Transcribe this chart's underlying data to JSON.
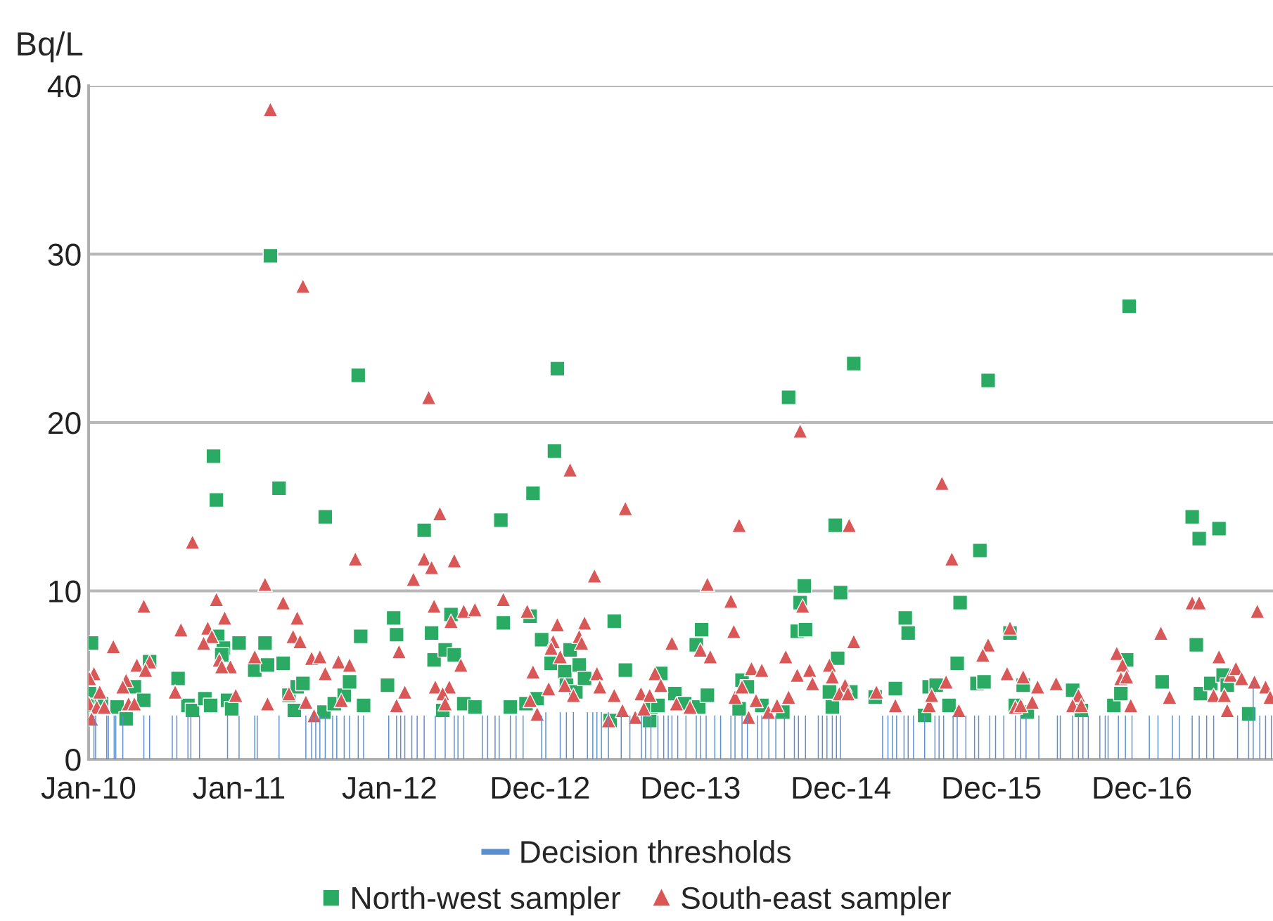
{
  "chart_data": {
    "type": "scatter",
    "ylabel": "Bq/L",
    "xlim": [
      "2010-01-01",
      "2017-11-13"
    ],
    "xticks": [
      {
        "value": "2010-01-01",
        "label": "Jan-10"
      },
      {
        "value": "2011-01-01",
        "label": "Jan-11"
      },
      {
        "value": "2012-01-01",
        "label": "Jan-12"
      },
      {
        "value": "2012-12-31",
        "label": "Dec-12"
      },
      {
        "value": "2013-12-31",
        "label": "Dec-13"
      },
      {
        "value": "2014-12-31",
        "label": "Dec-14"
      },
      {
        "value": "2015-12-31",
        "label": "Dec-15"
      },
      {
        "value": "2016-12-30",
        "label": "Dec-16"
      }
    ],
    "ylim": [
      0,
      40
    ],
    "yticks": [
      0,
      10,
      20,
      30,
      40
    ],
    "grid": "y",
    "legend": "bottom",
    "series": [
      {
        "name": "Decision thresholds",
        "type": "bar",
        "color": "#5b8fd0",
        "x": [
          "2010-01-14",
          "2010-01-18",
          "2010-02-14",
          "2010-02-18",
          "2010-03-04",
          "2010-03-08",
          "2010-03-25",
          "2010-05-15",
          "2010-05-29",
          "2010-07-23",
          "2010-08-03",
          "2010-08-30",
          "2010-09-06",
          "2010-09-27",
          "2010-12-04",
          "2011-01-01",
          "2011-02-08",
          "2011-02-14",
          "2011-04-08",
          "2011-06-12",
          "2011-06-26",
          "2011-07-06",
          "2011-07-16",
          "2011-07-29",
          "2011-08-16",
          "2011-08-26",
          "2011-09-13",
          "2011-09-26",
          "2011-10-17",
          "2011-10-30",
          "2011-12-30",
          "2012-01-18",
          "2012-01-28",
          "2012-02-07",
          "2012-02-24",
          "2012-03-08",
          "2012-03-25",
          "2012-04-21",
          "2012-05-15",
          "2012-06-06",
          "2012-06-15",
          "2012-06-29",
          "2012-08-13",
          "2012-08-26",
          "2012-09-13",
          "2012-09-23",
          "2012-10-20",
          "2012-11-03",
          "2012-11-20",
          "2013-01-04",
          "2013-01-14",
          "2013-02-18",
          "2013-03-05",
          "2013-03-22",
          "2013-04-25",
          "2013-05-08",
          "2013-05-18",
          "2013-05-29",
          "2013-06-15",
          "2013-07-16",
          "2013-08-06",
          "2013-09-03",
          "2013-09-13",
          "2013-09-26",
          "2013-10-13",
          "2013-10-27",
          "2013-11-07",
          "2013-11-16",
          "2013-11-30",
          "2013-12-20",
          "2014-01-14",
          "2014-01-24",
          "2014-02-07",
          "2014-02-28",
          "2014-03-14",
          "2014-04-08",
          "2014-04-18",
          "2014-05-05",
          "2014-05-18",
          "2014-06-12",
          "2014-06-22",
          "2014-07-09",
          "2014-07-26",
          "2014-08-16",
          "2014-09-09",
          "2014-09-19",
          "2014-10-06",
          "2014-11-06",
          "2014-11-16",
          "2014-11-27",
          "2014-12-10",
          "2014-12-20",
          "2014-12-30",
          "2015-04-11",
          "2015-04-24",
          "2015-05-05",
          "2015-05-15",
          "2015-06-02",
          "2015-06-12",
          "2015-06-25",
          "2015-07-22",
          "2015-08-16",
          "2015-08-26",
          "2015-09-06",
          "2015-09-29",
          "2015-10-09",
          "2015-10-30",
          "2015-11-20",
          "2015-11-30",
          "2015-12-27",
          "2016-01-10",
          "2016-01-30",
          "2016-02-27",
          "2016-03-11",
          "2016-03-24",
          "2016-04-24",
          "2016-06-08",
          "2016-06-15",
          "2016-07-15",
          "2016-07-29",
          "2016-08-09",
          "2016-08-22",
          "2016-09-19",
          "2016-10-02",
          "2016-10-09",
          "2016-11-03",
          "2016-11-20",
          "2016-12-06",
          "2017-01-17",
          "2017-02-07",
          "2017-03-14",
          "2017-03-31",
          "2017-05-01",
          "2017-05-18",
          "2017-06-05",
          "2017-06-22",
          "2017-08-19",
          "2017-09-15",
          "2017-09-26",
          "2017-10-12",
          "2017-10-26",
          "2017-11-09"
        ],
        "values": [
          2.6,
          2.6,
          2.6,
          2.6,
          2.6,
          2.6,
          2.6,
          2.6,
          2.6,
          2.6,
          2.6,
          2.6,
          2.6,
          2.6,
          2.6,
          2.6,
          2.6,
          2.6,
          2.6,
          2.6,
          2.6,
          2.6,
          2.6,
          2.6,
          2.6,
          2.6,
          2.6,
          2.6,
          2.6,
          2.6,
          2.6,
          2.6,
          2.6,
          2.6,
          2.6,
          2.6,
          2.6,
          2.6,
          2.6,
          2.6,
          2.6,
          2.6,
          2.6,
          2.6,
          2.6,
          2.6,
          2.6,
          2.6,
          2.6,
          2.6,
          2.8,
          2.8,
          2.8,
          2.8,
          2.8,
          2.8,
          2.8,
          2.8,
          2.8,
          2.8,
          2.6,
          2.6,
          2.6,
          2.6,
          2.6,
          2.6,
          2.6,
          2.6,
          2.6,
          2.6,
          2.6,
          2.6,
          2.6,
          2.6,
          2.6,
          2.6,
          2.6,
          2.6,
          2.6,
          2.6,
          2.6,
          2.6,
          2.6,
          2.6,
          2.6,
          2.6,
          2.6,
          2.6,
          2.6,
          2.6,
          2.6,
          2.6,
          2.6,
          2.6,
          2.6,
          2.6,
          2.6,
          2.6,
          2.6,
          2.6,
          2.6,
          2.6,
          2.6,
          2.6,
          2.6,
          2.6,
          2.6,
          2.6,
          2.6,
          2.6,
          2.6,
          2.6,
          2.6,
          2.6,
          2.6,
          2.6,
          2.6,
          2.6,
          2.6,
          2.6,
          2.6,
          2.6,
          2.6,
          2.6,
          2.6,
          2.6,
          2.6,
          2.6,
          2.6,
          2.6,
          2.6,
          2.6,
          2.6,
          2.6,
          2.6,
          2.6,
          2.6,
          2.6,
          4.5,
          2.6,
          2.6,
          2.6
        ]
      },
      {
        "name": "North-west sampler",
        "marker": "square",
        "color": "#2aaa62",
        "x": [
          "2010-01-08",
          "2010-01-03",
          "2010-01-02",
          "2010-02-01",
          "2010-03-11",
          "2010-04-02",
          "2010-04-22",
          "2010-05-15",
          "2010-05-29",
          "2010-08-06",
          "2010-08-30",
          "2010-09-10",
          "2010-10-10",
          "2010-10-24",
          "2010-10-31",
          "2010-11-07",
          "2010-11-10",
          "2010-11-24",
          "2010-11-20",
          "2010-12-04",
          "2010-12-14",
          "2011-01-01",
          "2011-02-08",
          "2011-03-05",
          "2011-03-11",
          "2011-03-18",
          "2011-04-08",
          "2011-04-18",
          "2011-05-02",
          "2011-05-15",
          "2011-05-22",
          "2011-06-05",
          "2011-07-26",
          "2011-07-29",
          "2011-08-20",
          "2011-09-13",
          "2011-09-26",
          "2011-10-17",
          "2011-10-23",
          "2011-10-30",
          "2011-12-27",
          "2012-01-11",
          "2012-01-18",
          "2012-03-25",
          "2012-04-12",
          "2012-04-18",
          "2012-05-15",
          "2012-05-29",
          "2012-06-06",
          "2012-05-09",
          "2012-06-29",
          "2012-07-26",
          "2012-10-20",
          "2012-09-27",
          "2012-10-03",
          "2012-12-07",
          "2012-11-27",
          "2012-12-24",
          "2012-12-14",
          "2013-02-04",
          "2013-02-11",
          "2013-01-04",
          "2013-01-27",
          "2013-03-01",
          "2013-03-14",
          "2013-03-05",
          "2013-03-28",
          "2013-04-05",
          "2013-04-18",
          "2013-06-29",
          "2013-07-26",
          "2013-06-19",
          "2013-09-23",
          "2013-09-26",
          "2013-10-13",
          "2013-10-20",
          "2013-11-23",
          "2013-12-17",
          "2014-01-20",
          "2014-01-14",
          "2014-01-27",
          "2014-02-10",
          "2014-04-28",
          "2014-05-05",
          "2014-05-18",
          "2014-06-22",
          "2014-08-12",
          "2014-08-26",
          "2014-09-16",
          "2014-10-06",
          "2014-09-23",
          "2014-10-03",
          "2014-12-03",
          "2014-12-10",
          "2014-12-23",
          "2014-12-30",
          "2014-12-17",
          "2015-01-24",
          "2015-01-31",
          "2015-03-24",
          "2015-05-12",
          "2015-07-22",
          "2015-08-02",
          "2015-08-19",
          "2015-09-19",
          "2015-10-09",
          "2015-10-16",
          "2015-06-05",
          "2015-06-12",
          "2015-12-03",
          "2015-11-26",
          "2015-12-13",
          "2015-12-23",
          "2016-02-14",
          "2016-02-27",
          "2016-03-17",
          "2016-03-27",
          "2016-07-15",
          "2016-08-05",
          "2016-10-23",
          "2016-11-09",
          "2016-11-23",
          "2016-11-29",
          "2017-02-17",
          "2017-05-01",
          "2017-05-18",
          "2017-05-11",
          "2017-05-21",
          "2017-07-05",
          "2017-06-15",
          "2017-07-15",
          "2017-07-25",
          "2017-09-15"
        ],
        "values": [
          6.9,
          3.9,
          3.2,
          3.3,
          3.1,
          2.4,
          4.3,
          3.5,
          5.8,
          4.8,
          3.2,
          2.9,
          3.6,
          3.2,
          18.0,
          15.4,
          7.3,
          6.6,
          6.2,
          3.5,
          3.0,
          6.9,
          5.3,
          6.9,
          5.6,
          29.9,
          16.1,
          5.7,
          3.8,
          2.9,
          4.3,
          4.5,
          2.8,
          14.4,
          3.3,
          3.8,
          4.6,
          22.8,
          7.3,
          3.2,
          4.4,
          8.4,
          7.4,
          13.6,
          7.5,
          5.9,
          6.5,
          8.6,
          6.2,
          2.9,
          3.3,
          3.1,
          3.1,
          14.2,
          8.1,
          8.5,
          3.3,
          3.6,
          15.8,
          18.3,
          23.2,
          7.1,
          5.7,
          5.2,
          6.5,
          4.4,
          4.0,
          5.6,
          4.8,
          8.2,
          5.3,
          2.3,
          2.3,
          3.1,
          3.2,
          5.1,
          3.9,
          3.3,
          3.1,
          6.8,
          7.7,
          3.8,
          3.0,
          4.7,
          4.3,
          3.2,
          2.8,
          21.5,
          7.6,
          7.7,
          9.3,
          10.3,
          4.0,
          3.1,
          6.0,
          9.9,
          13.9,
          4.0,
          23.5,
          3.7,
          4.2,
          2.6,
          4.3,
          4.4,
          3.2,
          5.7,
          9.3,
          8.4,
          7.5,
          12.4,
          4.5,
          4.6,
          22.5,
          7.5,
          3.2,
          4.4,
          2.8,
          4.1,
          2.9,
          3.2,
          3.9,
          5.9,
          26.9,
          4.6,
          14.4,
          13.1,
          6.8,
          3.9,
          13.7,
          4.5,
          5.0,
          4.4,
          2.7
        ]
      },
      {
        "name": "South-east sampler",
        "marker": "triangle",
        "color": "#d95757",
        "x": [
          "2011-03-18",
          "2011-06-05",
          "2012-04-05",
          "2010-09-10",
          "2011-10-10",
          "2012-05-02",
          "2012-03-25",
          "2012-04-12",
          "2012-06-06",
          "2012-02-28",
          "2011-03-05",
          "2010-05-15",
          "2010-11-07",
          "2011-04-18",
          "2010-11-27",
          "2011-05-22",
          "2012-04-18",
          "2012-06-29",
          "2012-07-26",
          "2012-05-29",
          "2010-08-13",
          "2010-10-17",
          "2010-10-27",
          "2010-10-07",
          "2010-03-02",
          "2011-05-12",
          "2011-05-29",
          "2012-01-24",
          "2010-04-28",
          "2010-05-29",
          "2010-05-19",
          "2010-11-14",
          "2010-12-11",
          "2010-11-20",
          "2011-02-08",
          "2011-06-26",
          "2011-07-16",
          "2011-08-30",
          "2011-09-26",
          "2011-07-29",
          "2012-06-22",
          "2010-01-14",
          "2010-01-03",
          "2010-04-02",
          "2010-03-25",
          "2010-01-28",
          "2010-07-30",
          "2010-01-02",
          "2010-01-21",
          "2010-02-08",
          "2010-04-08",
          "2010-04-22",
          "2010-12-24",
          "2011-05-02",
          "2011-06-12",
          "2011-09-06",
          "2011-03-11",
          "2010-01-08",
          "2011-07-02",
          "2012-01-18",
          "2012-02-07",
          "2012-04-21",
          "2012-05-25",
          "2012-05-09",
          "2012-05-15",
          "2012-10-03",
          "2012-11-30",
          "2013-03-14",
          "2013-07-26",
          "2013-05-12",
          "2013-02-11",
          "2013-04-18",
          "2013-02-01",
          "2013-01-27",
          "2013-04-05",
          "2013-04-11",
          "2013-02-18",
          "2012-12-14",
          "2013-05-18",
          "2013-01-21",
          "2013-03-01",
          "2013-05-25",
          "2013-03-22",
          "2012-12-07",
          "2012-12-24",
          "2013-06-29",
          "2013-07-19",
          "2013-06-15",
          "2013-08-19",
          "2013-09-02",
          "2013-09-23",
          "2013-09-09",
          "2013-10-06",
          "2013-10-20",
          "2013-11-16",
          "2013-11-27",
          "2013-12-30",
          "2014-01-24",
          "2014-02-17",
          "2014-02-10",
          "2014-04-08",
          "2014-04-15",
          "2014-04-28",
          "2014-04-18",
          "2014-05-05",
          "2014-05-28",
          "2014-06-22",
          "2014-05-21",
          "2014-06-08",
          "2014-07-08",
          "2014-07-29",
          "2014-08-19",
          "2014-08-26",
          "2014-09-16",
          "2014-09-23",
          "2014-09-29",
          "2014-10-16",
          "2014-10-23",
          "2014-12-03",
          "2014-12-10",
          "2015-01-10",
          "2015-01-20",
          "2015-01-31",
          "2014-12-27",
          "2015-01-17",
          "2015-03-27",
          "2015-05-12",
          "2015-09-02",
          "2015-09-26",
          "2015-08-02",
          "2015-08-08",
          "2015-09-12",
          "2015-10-13",
          "2016-02-14",
          "2015-12-23",
          "2015-12-10",
          "2016-02-07",
          "2016-03-17",
          "2016-04-21",
          "2016-04-08",
          "2016-02-27",
          "2016-03-11",
          "2016-06-05",
          "2016-07-29",
          "2016-07-15",
          "2016-08-05",
          "2016-10-30",
          "2016-11-13",
          "2016-11-09",
          "2016-11-23",
          "2016-12-03",
          "2017-02-14",
          "2017-03-07",
          "2017-05-01",
          "2017-05-18",
          "2017-07-05",
          "2017-06-22",
          "2017-07-18",
          "2017-07-25",
          "2017-08-02",
          "2017-08-15",
          "2017-08-29",
          "2017-09-29",
          "2017-10-26",
          "2017-11-06",
          "2017-10-06"
        ],
        "values": [
          38.6,
          28.1,
          21.5,
          12.9,
          11.9,
          14.6,
          11.9,
          11.4,
          11.8,
          10.7,
          10.4,
          9.1,
          9.5,
          9.3,
          8.4,
          8.4,
          9.1,
          8.8,
          8.9,
          8.2,
          7.7,
          7.8,
          7.3,
          6.9,
          6.7,
          7.3,
          7.0,
          6.4,
          5.6,
          5.8,
          5.3,
          5.9,
          5.5,
          5.5,
          6.1,
          6.0,
          6.1,
          5.8,
          5.6,
          5.1,
          5.6,
          5.1,
          4.8,
          4.7,
          4.3,
          4.0,
          4.0,
          3.3,
          3.1,
          3.1,
          3.3,
          3.3,
          3.8,
          3.9,
          3.4,
          3.5,
          3.3,
          2.4,
          2.6,
          3.2,
          4.0,
          4.3,
          4.3,
          3.9,
          3.3,
          9.5,
          8.8,
          17.2,
          14.9,
          10.9,
          8.0,
          8.1,
          7.0,
          6.6,
          7.3,
          6.9,
          6.1,
          5.2,
          5.1,
          4.2,
          4.4,
          4.3,
          3.8,
          3.5,
          2.7,
          3.8,
          2.9,
          2.3,
          2.5,
          3.9,
          3.8,
          3.0,
          5.1,
          4.4,
          6.9,
          3.3,
          3.1,
          6.5,
          6.1,
          10.4,
          9.4,
          7.6,
          13.9,
          3.7,
          4.3,
          5.4,
          5.3,
          2.5,
          3.5,
          2.8,
          3.2,
          6.1,
          3.7,
          5.0,
          19.5,
          9.1,
          5.3,
          4.5,
          5.6,
          4.9,
          4.4,
          13.9,
          7.0,
          3.9,
          3.9,
          4.0,
          3.2,
          16.4,
          11.9,
          3.2,
          3.8,
          4.6,
          2.9,
          7.8,
          6.8,
          6.2,
          5.1,
          4.9,
          4.3,
          3.4,
          3.1,
          3.2,
          4.5,
          3.8,
          3.2,
          3.2,
          6.3,
          5.6,
          4.8,
          4.9,
          3.2,
          7.5,
          3.7,
          9.3,
          9.3,
          6.1,
          3.8,
          3.8,
          2.9,
          5.0,
          5.4,
          4.8,
          4.6,
          4.3,
          3.7,
          8.8
        ]
      }
    ]
  }
}
